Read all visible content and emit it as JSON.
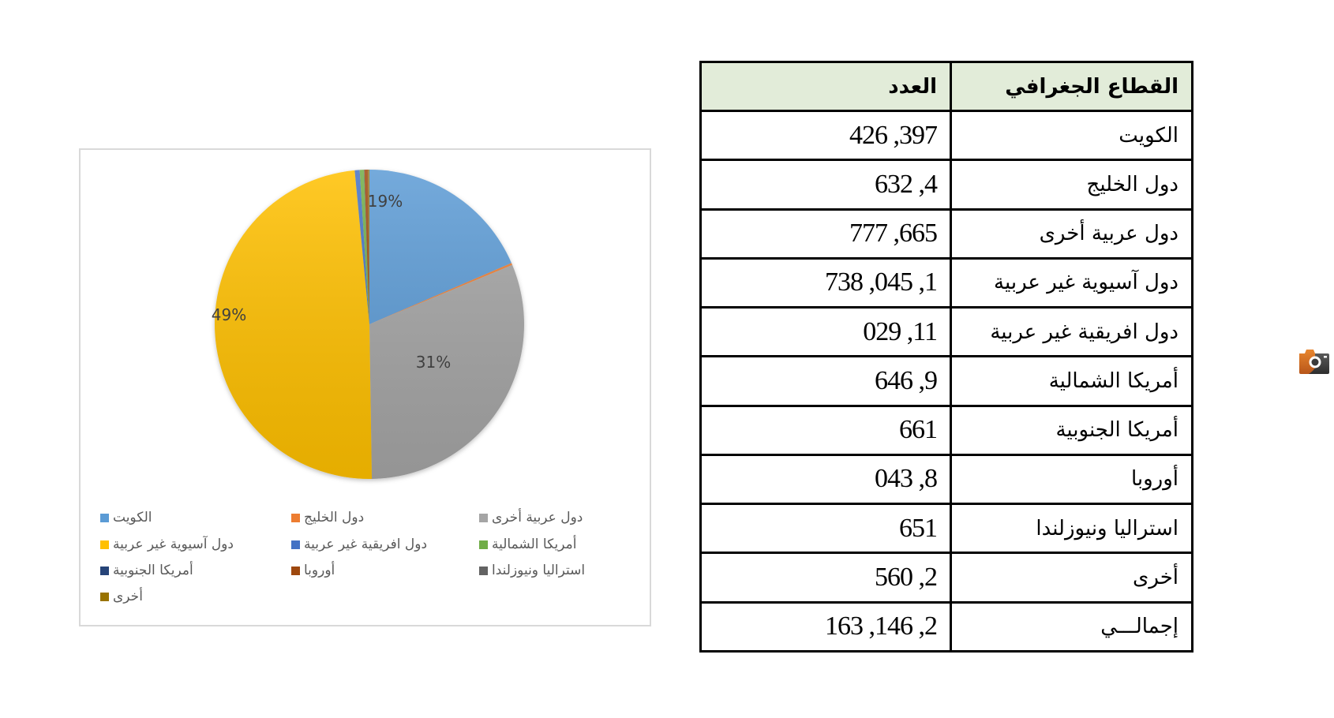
{
  "table": {
    "headers": {
      "region": "القطاع الجغرافي",
      "count": "العدد"
    },
    "rows": [
      {
        "region": "الكويت",
        "count": "397, 426"
      },
      {
        "region": "دول الخليج",
        "count": "4, 632"
      },
      {
        "region": "دول عربية أخرى",
        "count": "665, 777"
      },
      {
        "region": "دول آسيوية غير عربية",
        "count": "1, 045, 738"
      },
      {
        "region": "دول افريقية غير عربية",
        "count": "11, 029"
      },
      {
        "region": "أمريكا الشمالية",
        "count": "9, 646"
      },
      {
        "region": "أمريكا الجنوبية",
        "count": "661"
      },
      {
        "region": "أوروبا",
        "count": "8, 043"
      },
      {
        "region": "استراليا ونيوزلندا",
        "count": "651"
      },
      {
        "region": "أخرى",
        "count": "2, 560"
      },
      {
        "region": "إجمالـــي",
        "count": "2, 146, 163"
      }
    ]
  },
  "chart_data": {
    "type": "pie",
    "title": "",
    "categories": [
      "الكويت",
      "دول الخليج",
      "دول عربية أخرى",
      "دول آسيوية غير عربية",
      "دول افريقية غير عربية",
      "أمريكا الشمالية",
      "أمريكا الجنوبية",
      "أوروبا",
      "استراليا ونيوزلندا",
      "أخرى"
    ],
    "values": [
      397426,
      4632,
      665777,
      1045738,
      11029,
      9646,
      661,
      8043,
      651,
      2560
    ],
    "colors": [
      "#5b9bd5",
      "#ed7d31",
      "#a5a5a5",
      "#ffc000",
      "#4472c4",
      "#70ad47",
      "#264478",
      "#9e480e",
      "#636363",
      "#997300"
    ],
    "data_labels": [
      {
        "category": "الكويت",
        "text": "19%"
      },
      {
        "category": "دول عربية أخرى",
        "text": "31%"
      },
      {
        "category": "دول آسيوية غير عربية",
        "text": "49%"
      }
    ],
    "legend_position": "bottom",
    "legend_columns": 3
  },
  "logo": {
    "icon": "camera-logo-icon"
  }
}
